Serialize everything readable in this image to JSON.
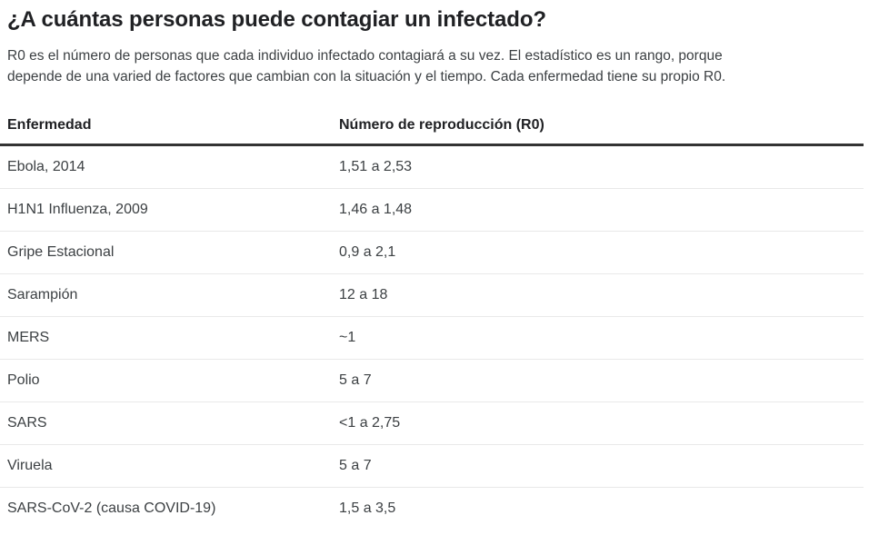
{
  "intro": {
    "lines": [
      "R0 es el número de personas que cada individuo infectado contagiará a su vez. El estadístico es un rango, porque",
      "depende de una varied de factores que cambian con la situación y el tiempo. Cada enfermedad tiene su propio R0."
    ]
  },
  "chart_data": {
    "type": "table",
    "title": "¿A cuántas personas puede contagiar un infectado?",
    "columns": [
      "Enfermedad",
      "Número de reproducción (R0)"
    ],
    "rows": [
      {
        "disease": "Ebola, 2014",
        "r0": "1,51 a 2,53"
      },
      {
        "disease": "H1N1 Influenza, 2009",
        "r0": "1,46 a 1,48"
      },
      {
        "disease": "Gripe Estacional",
        "r0": "0,9 a 2,1"
      },
      {
        "disease": "Sarampión",
        "r0": "12 a 18"
      },
      {
        "disease": "MERS",
        "r0": "~1"
      },
      {
        "disease": "Polio",
        "r0": "5 a 7"
      },
      {
        "disease": "SARS",
        "r0": "<1 a 2,75"
      },
      {
        "disease": "Viruela",
        "r0": "5 a 7"
      },
      {
        "disease": "SARS-CoV-2 (causa COVID-19)",
        "r0": "1,5 a 3,5"
      }
    ]
  },
  "colors": {
    "heading_text": "#202124",
    "body_text": "#3c4043",
    "header_rule": "#333333",
    "row_divider": "#e9e9e9",
    "background": "#ffffff"
  }
}
